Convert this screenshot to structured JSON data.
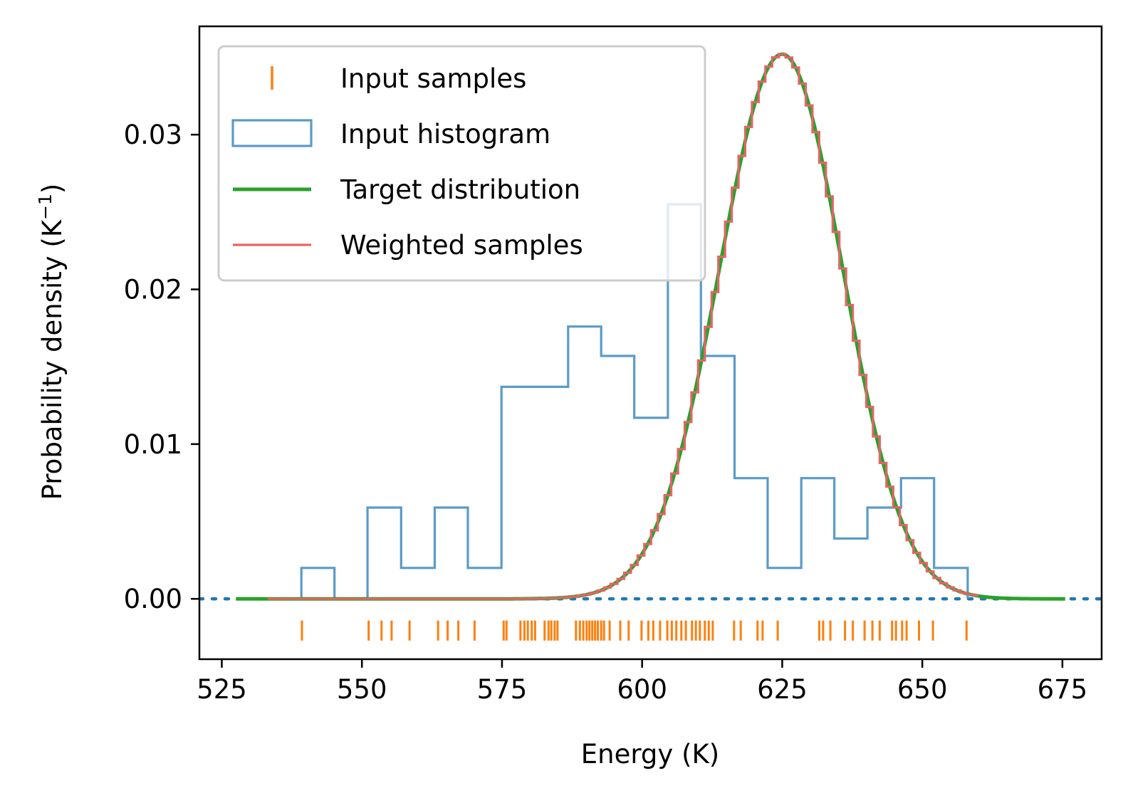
{
  "chart_data": {
    "type": "histogram+line+rug",
    "xlabel": "Energy (K)",
    "ylabel_main": "Probability density (K",
    "ylabel_sup": "−1",
    "ylabel_end": ")",
    "xlim": [
      521,
      682
    ],
    "ylim": [
      -0.0039,
      0.037
    ],
    "x_ticks": [
      525,
      550,
      575,
      600,
      625,
      650,
      675
    ],
    "x_tick_labels": [
      "525",
      "550",
      "575",
      "600",
      "625",
      "650",
      "675"
    ],
    "y_ticks": [
      0.0,
      0.01,
      0.02,
      0.03
    ],
    "y_tick_labels": [
      "0.00",
      "0.01",
      "0.02",
      "0.03"
    ],
    "legend": {
      "placement": "upper-left",
      "entries": [
        "Input samples",
        "Input histogram",
        "Target distribution",
        "Weighted samples"
      ]
    },
    "colors": {
      "input_samples": "#ff7f0e",
      "input_histogram": "#5a9bc8",
      "target": "#2ca02c",
      "weighted": "#e06666",
      "zero_line": "#1f77b4"
    },
    "target_distribution": {
      "mean": 625,
      "peak": 0.0352,
      "sigma_left": 11.2,
      "sigma_right": 10.8,
      "x_range": [
        527.5,
        675.5
      ]
    },
    "input_histogram": {
      "edges": [
        539.2,
        545.1,
        551.0,
        557.0,
        563.0,
        568.9,
        574.9,
        580.8,
        586.8,
        592.7,
        598.6,
        604.6,
        610.5,
        616.5,
        622.4,
        628.4,
        634.3,
        640.2,
        646.2,
        652.1,
        658.1
      ],
      "values": [
        0.002,
        0.0,
        0.0059,
        0.002,
        0.0059,
        0.002,
        0.0137,
        0.0137,
        0.0176,
        0.0157,
        0.0117,
        0.0255,
        0.0157,
        0.0078,
        0.002,
        0.0078,
        0.0039,
        0.0059,
        0.0078,
        0.002
      ]
    },
    "weighted_samples": {
      "x_start": 533.2,
      "x_end": 660.0,
      "bin_width": 1.2
    },
    "input_samples": [
      539.3,
      551.2,
      553.5,
      555.3,
      558.5,
      563.6,
      565.3,
      567.2,
      570.1,
      575.3,
      575.8,
      578.3,
      579.0,
      579.6,
      580.3,
      580.9,
      582.6,
      583.3,
      583.8,
      584.4,
      584.9,
      588.2,
      588.9,
      589.5,
      590.1,
      590.6,
      591.1,
      591.6,
      592.1,
      592.7,
      593.2,
      594.2,
      596.1,
      597.6,
      599.9,
      601.1,
      602.0,
      603.2,
      604.5,
      605.3,
      606.1,
      607.0,
      607.8,
      608.9,
      609.6,
      610.3,
      611.2,
      611.9,
      612.6,
      616.4,
      617.6,
      620.6,
      621.5,
      624.2,
      631.6,
      632.3,
      633.6,
      636.2,
      637.6,
      639.7,
      641.1,
      642.4,
      644.6,
      645.3,
      646.4,
      647.2,
      649.4,
      651.9,
      657.9
    ]
  }
}
